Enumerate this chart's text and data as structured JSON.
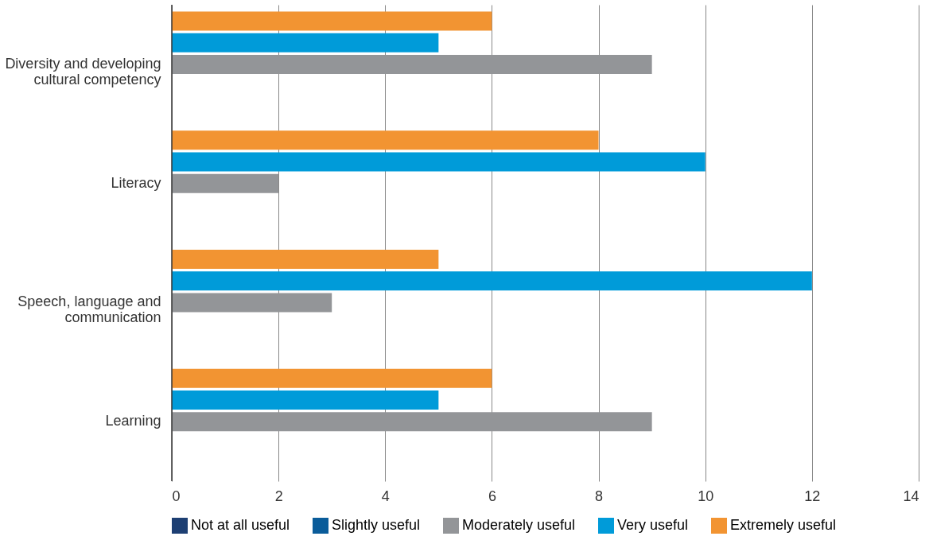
{
  "chart_data": {
    "type": "bar",
    "orientation": "horizontal",
    "categories": [
      "Diversity and developing cultural competency",
      "Literacy",
      "Speech, language and communication",
      "Learning"
    ],
    "series": [
      {
        "name": "Not at all useful",
        "color": "#1d3f73",
        "values": [
          0,
          0,
          0,
          0
        ]
      },
      {
        "name": "Slightly useful",
        "color": "#0a5c9a",
        "values": [
          0,
          0,
          0,
          0
        ]
      },
      {
        "name": "Moderately useful",
        "color": "#939598",
        "values": [
          9,
          2,
          3,
          9
        ]
      },
      {
        "name": "Very useful",
        "color": "#009bd9",
        "values": [
          5,
          10,
          12,
          5
        ]
      },
      {
        "name": "Extremely useful",
        "color": "#f29432",
        "values": [
          6,
          8,
          5,
          6
        ]
      }
    ],
    "xlim": [
      0,
      14
    ],
    "xticks": [
      0,
      2,
      4,
      6,
      8,
      10,
      12,
      14
    ],
    "grid": "x",
    "legend": "bottom"
  }
}
